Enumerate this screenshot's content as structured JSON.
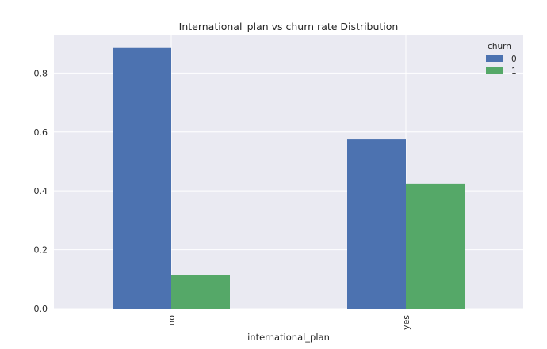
{
  "chart_data": {
    "type": "bar",
    "title": "International_plan vs churn rate Distribution",
    "xlabel": "international_plan",
    "ylabel": "",
    "categories": [
      "no",
      "yes"
    ],
    "ylim": [
      0,
      0.93
    ],
    "yticks": [
      0.0,
      0.2,
      0.4,
      0.6,
      0.8
    ],
    "ytick_labels": [
      "0.0",
      "0.2",
      "0.4",
      "0.6",
      "0.8"
    ],
    "grid": true,
    "legend": {
      "title": "churn",
      "position": "top-right"
    },
    "series": [
      {
        "name": "0",
        "color": "#4c72b0",
        "values": [
          0.885,
          0.575
        ]
      },
      {
        "name": "1",
        "color": "#55a868",
        "values": [
          0.115,
          0.425
        ]
      }
    ],
    "background": "#eaeaf2"
  }
}
